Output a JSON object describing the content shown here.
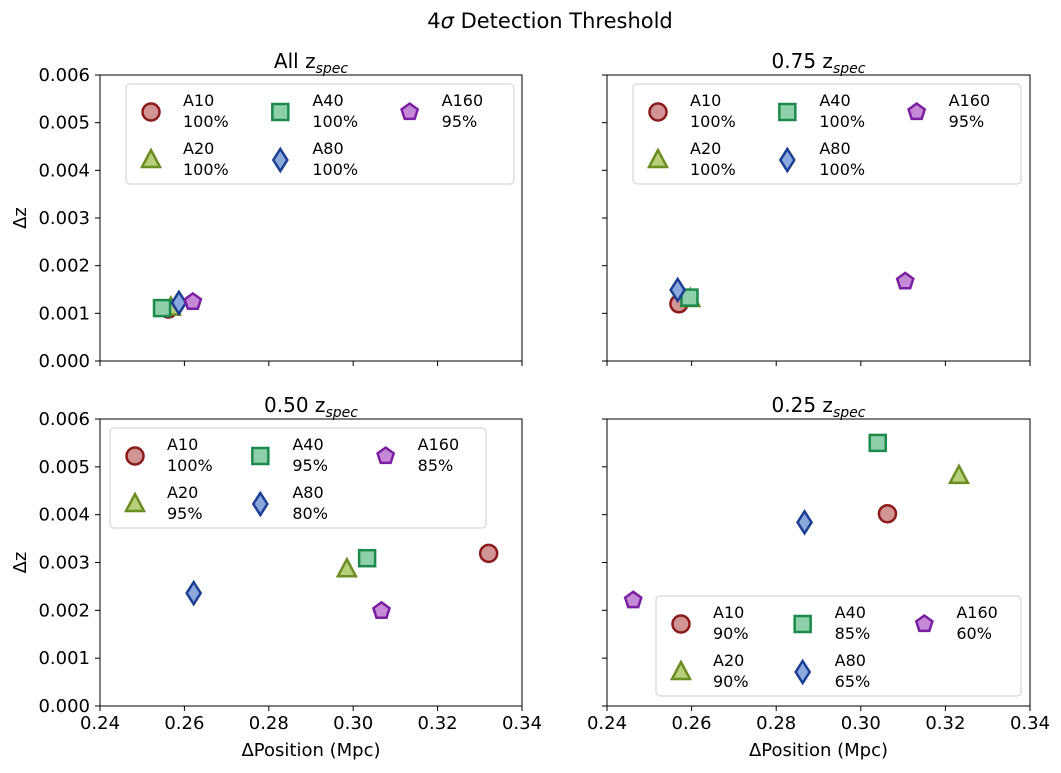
{
  "suptitle": {
    "prefix": "4",
    "sigma": "σ",
    "suffix": " Detection Threshold"
  },
  "chart_data": [
    {
      "type": "scatter",
      "title_main": "All z",
      "title_sub": "spec",
      "xlabel": "",
      "ylabel": "Δz",
      "xlim": [
        0.24,
        0.34
      ],
      "ylim": [
        0.0,
        0.006
      ],
      "xticks": [
        0.24,
        0.26,
        0.28,
        0.3,
        0.32,
        0.34
      ],
      "xtick_labels": [],
      "yticks": [
        0.0,
        0.001,
        0.002,
        0.003,
        0.004,
        0.005,
        0.006
      ],
      "ytick_labels": [
        "0.000",
        "0.001",
        "0.002",
        "0.003",
        "0.004",
        "0.005",
        "0.006"
      ],
      "legend_position": "top",
      "series": [
        {
          "name": "A10",
          "pct": "100%",
          "marker": "circle",
          "x": 0.2562,
          "y": 0.00109
        },
        {
          "name": "A20",
          "pct": "100%",
          "marker": "triangle",
          "x": 0.2568,
          "y": 0.00112
        },
        {
          "name": "A40",
          "pct": "100%",
          "marker": "square",
          "x": 0.2547,
          "y": 0.00111
        },
        {
          "name": "A80",
          "pct": "100%",
          "marker": "diamond",
          "x": 0.2587,
          "y": 0.00122
        },
        {
          "name": "A160",
          "pct": "95%",
          "marker": "pentagon",
          "x": 0.262,
          "y": 0.00124
        }
      ]
    },
    {
      "type": "scatter",
      "title_main": "0.75 z",
      "title_sub": "spec",
      "xlabel": "",
      "ylabel": "",
      "xlim": [
        0.24,
        0.34
      ],
      "ylim": [
        0.0,
        0.006
      ],
      "xticks": [
        0.24,
        0.26,
        0.28,
        0.3,
        0.32,
        0.34
      ],
      "xtick_labels": [],
      "yticks": [
        0.0,
        0.001,
        0.002,
        0.003,
        0.004,
        0.005,
        0.006
      ],
      "ytick_labels": [],
      "legend_position": "top",
      "series": [
        {
          "name": "A10",
          "pct": "100%",
          "marker": "circle",
          "x": 0.257,
          "y": 0.0012
        },
        {
          "name": "A20",
          "pct": "100%",
          "marker": "triangle",
          "x": 0.2597,
          "y": 0.0013
        },
        {
          "name": "A40",
          "pct": "100%",
          "marker": "square",
          "x": 0.2595,
          "y": 0.00133
        },
        {
          "name": "A80",
          "pct": "100%",
          "marker": "diamond",
          "x": 0.2567,
          "y": 0.00149
        },
        {
          "name": "A160",
          "pct": "95%",
          "marker": "pentagon",
          "x": 0.3105,
          "y": 0.00167
        }
      ]
    },
    {
      "type": "scatter",
      "title_main": "0.50 z",
      "title_sub": "spec",
      "xlabel": "ΔPosition (Mpc)",
      "ylabel": "Δz",
      "xlim": [
        0.24,
        0.34
      ],
      "ylim": [
        0.0,
        0.006
      ],
      "xticks": [
        0.24,
        0.26,
        0.28,
        0.3,
        0.32,
        0.34
      ],
      "xtick_labels": [
        "0.24",
        "0.26",
        "0.28",
        "0.30",
        "0.32",
        "0.34"
      ],
      "yticks": [
        0.0,
        0.001,
        0.002,
        0.003,
        0.004,
        0.005,
        0.006
      ],
      "ytick_labels": [
        "0.000",
        "0.001",
        "0.002",
        "0.003",
        "0.004",
        "0.005",
        "0.006"
      ],
      "legend_position": "top",
      "series": [
        {
          "name": "A10",
          "pct": "100%",
          "marker": "circle",
          "x": 0.3321,
          "y": 0.00319
        },
        {
          "name": "A20",
          "pct": "95%",
          "marker": "triangle",
          "x": 0.2985,
          "y": 0.00286
        },
        {
          "name": "A40",
          "pct": "95%",
          "marker": "square",
          "x": 0.3033,
          "y": 0.00309
        },
        {
          "name": "A80",
          "pct": "80%",
          "marker": "diamond",
          "x": 0.2622,
          "y": 0.00236
        },
        {
          "name": "A160",
          "pct": "85%",
          "marker": "pentagon",
          "x": 0.3067,
          "y": 0.00199
        }
      ]
    },
    {
      "type": "scatter",
      "title_main": "0.25 z",
      "title_sub": "spec",
      "xlabel": "ΔPosition (Mpc)",
      "ylabel": "",
      "xlim": [
        0.24,
        0.34
      ],
      "ylim": [
        0.0,
        0.006
      ],
      "xticks": [
        0.24,
        0.26,
        0.28,
        0.3,
        0.32,
        0.34
      ],
      "xtick_labels": [
        "0.24",
        "0.26",
        "0.28",
        "0.30",
        "0.32",
        "0.34"
      ],
      "yticks": [
        0.0,
        0.001,
        0.002,
        0.003,
        0.004,
        0.005,
        0.006
      ],
      "ytick_labels": [],
      "legend_position": "bottom-right",
      "series": [
        {
          "name": "A10",
          "pct": "90%",
          "marker": "circle",
          "x": 0.3063,
          "y": 0.00402
        },
        {
          "name": "A20",
          "pct": "90%",
          "marker": "triangle",
          "x": 0.3232,
          "y": 0.00481
        },
        {
          "name": "A40",
          "pct": "85%",
          "marker": "square",
          "x": 0.304,
          "y": 0.0055
        },
        {
          "name": "A80",
          "pct": "65%",
          "marker": "diamond",
          "x": 0.2867,
          "y": 0.00384
        },
        {
          "name": "A160",
          "pct": "60%",
          "marker": "pentagon",
          "x": 0.2462,
          "y": 0.00221
        }
      ]
    }
  ],
  "marker_styles": {
    "circle": {
      "fill": "#d29595",
      "stroke": "#8b1a1a"
    },
    "triangle": {
      "fill": "#b6cf7a",
      "stroke": "#6b8e23"
    },
    "square": {
      "fill": "#8fd0aa",
      "stroke": "#1b8a4c"
    },
    "diamond": {
      "fill": "#8aa8dc",
      "stroke": "#1c3f94"
    },
    "pentagon": {
      "fill": "#c48ad6",
      "stroke": "#7b1fa2"
    }
  }
}
